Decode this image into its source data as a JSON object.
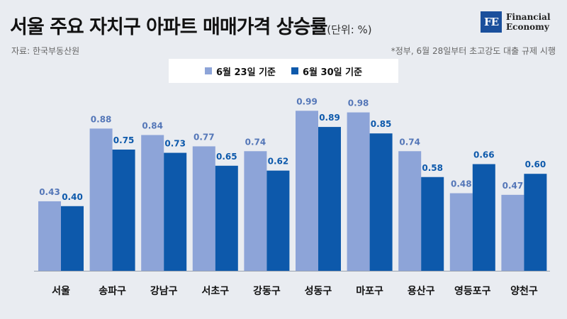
{
  "header": {
    "title": "서울 주요 자치구 아파트 매매가격 상승률",
    "unit": "(단위: %)",
    "source": "자료: 한국부동산원",
    "note": "*정부, 6월 28일부터 초고강도 대출 규제 시행"
  },
  "logo": {
    "mark": "FE",
    "line1": "Financial",
    "line2": "Economy"
  },
  "colors": {
    "series1": "#8da4d8",
    "series2": "#0d59ab",
    "label1": "#5577b8",
    "label2": "#0d59ab"
  },
  "chart_data": {
    "type": "bar",
    "title": "서울 주요 자치구 아파트 매매가격 상승률",
    "unit": "(단위: %)",
    "categories": [
      "서울",
      "송파구",
      "강남구",
      "서초구",
      "강동구",
      "성동구",
      "마포구",
      "용산구",
      "영등포구",
      "양천구"
    ],
    "series": [
      {
        "name": "6월 23일 기준",
        "values": [
          0.43,
          0.88,
          0.84,
          0.77,
          0.74,
          0.99,
          0.98,
          0.74,
          0.48,
          0.47
        ]
      },
      {
        "name": "6월 30일 기준",
        "values": [
          0.4,
          0.75,
          0.73,
          0.65,
          0.62,
          0.89,
          0.85,
          0.58,
          0.66,
          0.6
        ]
      }
    ],
    "ylim": [
      0,
      1.0
    ],
    "grid": false,
    "legend_position": "top-center"
  }
}
